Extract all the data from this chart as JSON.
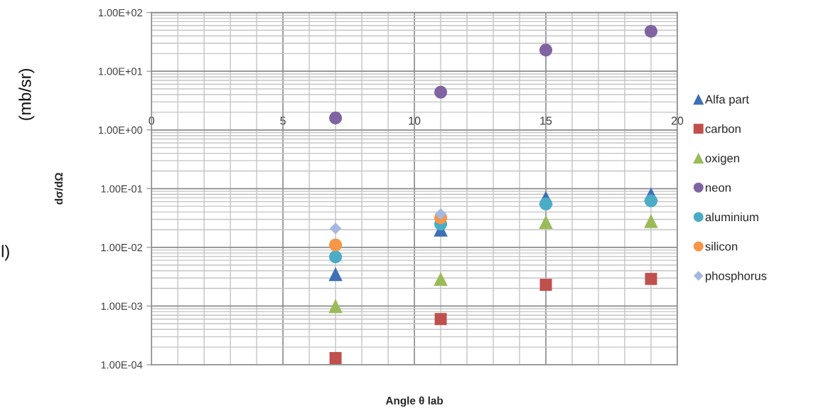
{
  "chart_data": {
    "type": "scatter",
    "xlabel": "Angle θ lab",
    "ylabel": "dσ/dΩ",
    "annotations": [
      "(mb/sr)",
      "l)"
    ],
    "log": "y",
    "grid": true,
    "legend": "right",
    "xlim": [
      0,
      20
    ],
    "xticks": [
      0,
      5,
      10,
      15,
      20
    ],
    "ylim": [
      0.0001,
      100
    ],
    "yticks": [
      {
        "value": 0.0001,
        "label": "1.00E-04"
      },
      {
        "value": 0.001,
        "label": "1.00E-03"
      },
      {
        "value": 0.01,
        "label": "1.00E-02"
      },
      {
        "value": 0.1,
        "label": "1.00E-01"
      },
      {
        "value": 1,
        "label": "1.00E+00"
      },
      {
        "value": 10,
        "label": "1.00E+01"
      },
      {
        "value": 100,
        "label": "1.00E+02"
      }
    ],
    "series": [
      {
        "name": "Alfa part",
        "color": "#3f6fb6",
        "marker": "triangle",
        "x": [
          7,
          11,
          15,
          19
        ],
        "values": [
          0.0035,
          0.02,
          0.07,
          0.08
        ]
      },
      {
        "name": "carbon",
        "color": "#c0504d",
        "marker": "square",
        "x": [
          7,
          11,
          15,
          19
        ],
        "values": [
          0.00013,
          0.0006,
          0.0023,
          0.0029
        ]
      },
      {
        "name": "oxigen",
        "color": "#9bbb59",
        "marker": "triangle",
        "x": [
          7,
          11,
          15,
          19
        ],
        "values": [
          0.001,
          0.0029,
          0.027,
          0.028
        ]
      },
      {
        "name": "neon",
        "color": "#8064a2",
        "marker": "circle",
        "x": [
          7,
          11,
          15,
          19
        ],
        "values": [
          1.6,
          4.4,
          23,
          48
        ]
      },
      {
        "name": "aluminium",
        "color": "#4bacc6",
        "marker": "circle",
        "x": [
          7,
          11,
          15,
          19
        ],
        "values": [
          0.0069,
          0.025,
          0.055,
          0.062
        ]
      },
      {
        "name": "silicon",
        "color": "#f79646",
        "marker": "circle",
        "x": [
          7,
          11
        ],
        "values": [
          0.011,
          0.032
        ]
      },
      {
        "name": "phosphorus",
        "color": "#a5b8e0",
        "marker": "diamond",
        "x": [
          7,
          11
        ],
        "values": [
          0.021,
          0.037
        ]
      }
    ]
  }
}
